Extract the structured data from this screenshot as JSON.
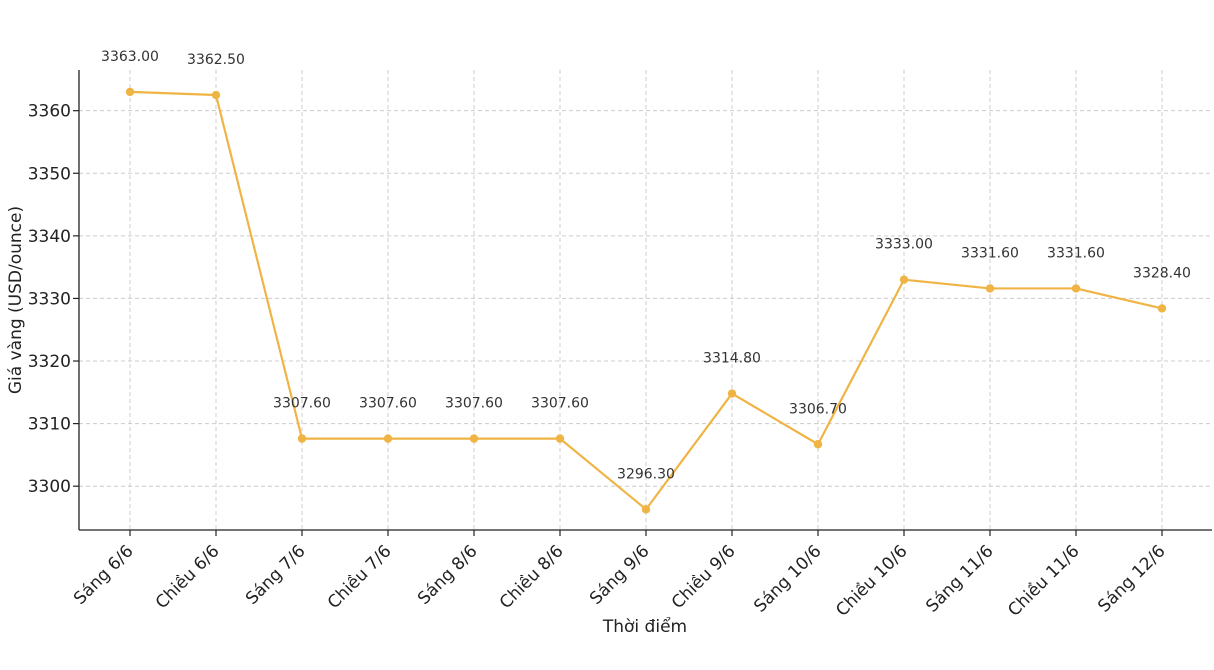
{
  "chart_data": {
    "type": "line",
    "title": "",
    "xlabel": "Thời điểm",
    "ylabel": "Giá vàng (USD/ounce)",
    "categories": [
      "Sáng 6/6",
      "Chiều 6/6",
      "Sáng 7/6",
      "Chiều 7/6",
      "Sáng 8/6",
      "Chiều 8/6",
      "Sáng 9/6",
      "Chiều 9/6",
      "Sáng 10/6",
      "Chiều 10/6",
      "Sáng 11/6",
      "Chiều 11/6",
      "Sáng 12/6"
    ],
    "series": [
      {
        "values": [
          3363.0,
          3362.5,
          3307.6,
          3307.6,
          3307.6,
          3307.6,
          3296.3,
          3314.8,
          3306.7,
          3333.0,
          3331.6,
          3331.6,
          3328.4
        ],
        "data_labels": [
          "3363.00",
          "3362.50",
          "3307.60",
          "3307.60",
          "3307.60",
          "3307.60",
          "3296.30",
          "3314.80",
          "3306.70",
          "3333.00",
          "3331.60",
          "3331.60",
          "3328.40"
        ],
        "color": "#f0b445"
      }
    ],
    "yticks": [
      3300,
      3310,
      3320,
      3330,
      3340,
      3350,
      3360
    ],
    "ylim": [
      3293,
      3366.5
    ],
    "grid": true,
    "legend": "none"
  }
}
